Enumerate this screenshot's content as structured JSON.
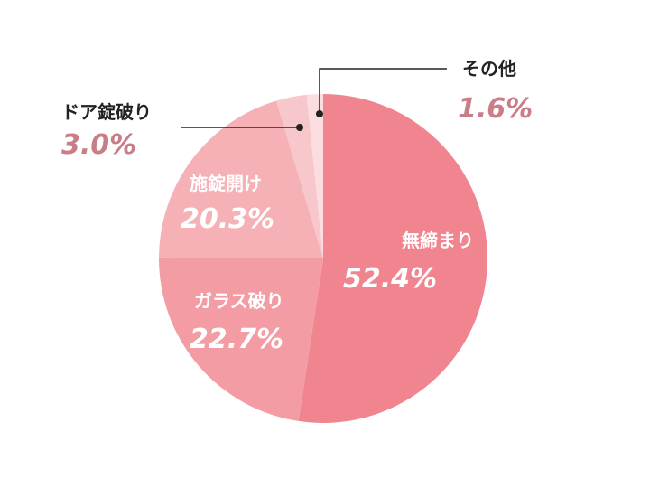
{
  "chart_data": {
    "type": "pie",
    "start": "top",
    "direction": "clockwise",
    "slices": [
      {
        "label": "無締まり",
        "value": 52.4,
        "display": "52.4%",
        "color": "#f0858f"
      },
      {
        "label": "ガラス破り",
        "value": 22.7,
        "display": "22.7%",
        "color": "#f39ca3"
      },
      {
        "label": "施錠開け",
        "value": 20.3,
        "display": "20.3%",
        "color": "#f6b1b6"
      },
      {
        "label": "ドア錠破り",
        "value": 3.0,
        "display": "3.0%",
        "color": "#f8c7cb"
      },
      {
        "label": "その他",
        "value": 1.6,
        "display": "1.6%",
        "color": "#fbdcdf"
      }
    ],
    "outside_pct_color": "#c97d87"
  }
}
